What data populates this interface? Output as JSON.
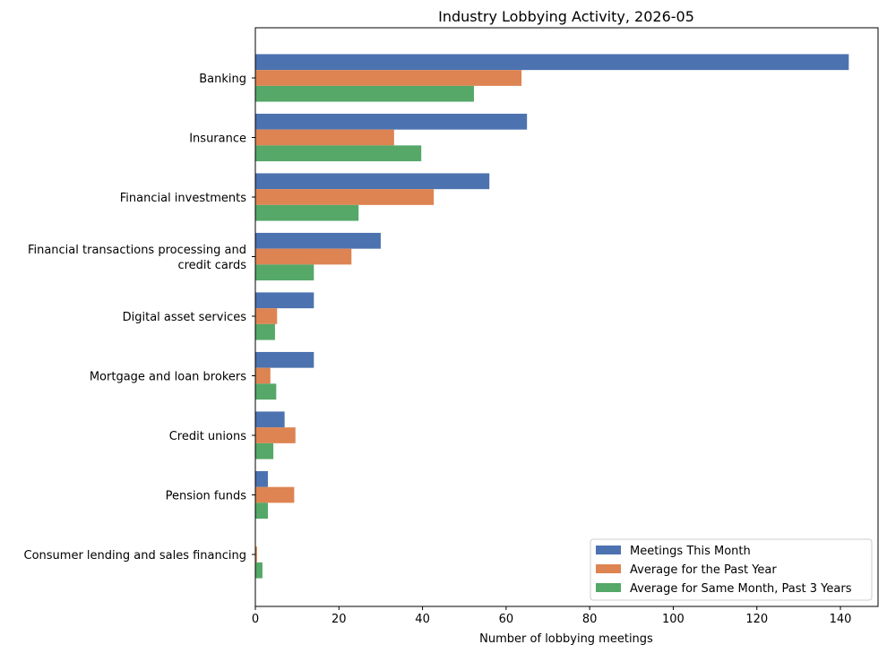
{
  "chart_data": {
    "type": "bar",
    "orientation": "horizontal",
    "title": "Industry Lobbying Activity, 2026-05",
    "xlabel": "Number of lobbying meetings",
    "ylabel": "",
    "xlim": [
      0,
      149
    ],
    "xticks": [
      0,
      20,
      40,
      60,
      80,
      100,
      120,
      140
    ],
    "grid": false,
    "legend_position": "lower-right",
    "categories": [
      "Banking",
      "Insurance",
      "Financial investments",
      "Financial transactions processing and credit cards",
      "Digital asset services",
      "Mortgage and loan brokers",
      "Credit unions",
      "Pension funds",
      "Consumer lending and sales financing"
    ],
    "category_label_lines": [
      [
        "Banking"
      ],
      [
        "Insurance"
      ],
      [
        "Financial investments"
      ],
      [
        "Financial transactions processing and",
        "credit cards"
      ],
      [
        "Digital asset services"
      ],
      [
        "Mortgage and loan brokers"
      ],
      [
        "Credit unions"
      ],
      [
        "Pension funds"
      ],
      [
        "Consumer lending and sales financing"
      ]
    ],
    "series": [
      {
        "name": "Meetings This Month",
        "color": "#4c72b0",
        "values": [
          142,
          65,
          56,
          30,
          14,
          14,
          7,
          3,
          0
        ]
      },
      {
        "name": "Average for the Past Year",
        "color": "#dd8452",
        "values": [
          63.7,
          33.2,
          42.7,
          23,
          5.2,
          3.6,
          9.6,
          9.3,
          0.4
        ]
      },
      {
        "name": "Average for Same Month, Past 3 Years",
        "color": "#55a868",
        "values": [
          52.3,
          39.7,
          24.7,
          14,
          4.7,
          5,
          4.3,
          3,
          1.7
        ]
      }
    ]
  }
}
